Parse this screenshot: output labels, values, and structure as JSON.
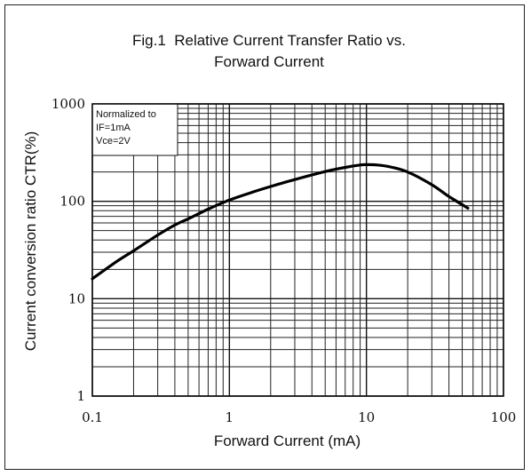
{
  "chart_data": {
    "type": "line",
    "title_line1": "Fig.1  Relative Current Transfer Ratio vs.",
    "title_line2": "Forward Current",
    "xlabel": "Forward Current (mA)",
    "ylabel": "Current conversion ratio CTR(%)",
    "x_scale": "log",
    "y_scale": "log",
    "xlim": [
      0.1,
      100
    ],
    "ylim": [
      1,
      1000
    ],
    "x_ticks": [
      {
        "value": 0.1,
        "label": "0.1"
      },
      {
        "value": 1,
        "label": "1"
      },
      {
        "value": 10,
        "label": "10"
      },
      {
        "value": 100,
        "label": "100"
      }
    ],
    "y_ticks": [
      {
        "value": 1,
        "label": "1"
      },
      {
        "value": 10,
        "label": "10"
      },
      {
        "value": 100,
        "label": "100"
      },
      {
        "value": 1000,
        "label": "1000"
      }
    ],
    "grid": true,
    "note_lines": [
      "Normalized to",
      "IF=1mA",
      "Vce=2V"
    ],
    "series": [
      {
        "x": [
          0.1,
          0.15,
          0.2,
          0.3,
          0.4,
          0.5,
          0.7,
          1,
          1.5,
          2,
          3,
          5,
          7,
          9,
          10,
          12,
          15,
          20,
          30,
          40,
          55
        ],
        "y": [
          16,
          24,
          31,
          45,
          57,
          66,
          83,
          103,
          125,
          142,
          167,
          202,
          223,
          236,
          238,
          236,
          225,
          200,
          148,
          112,
          85
        ]
      }
    ]
  }
}
